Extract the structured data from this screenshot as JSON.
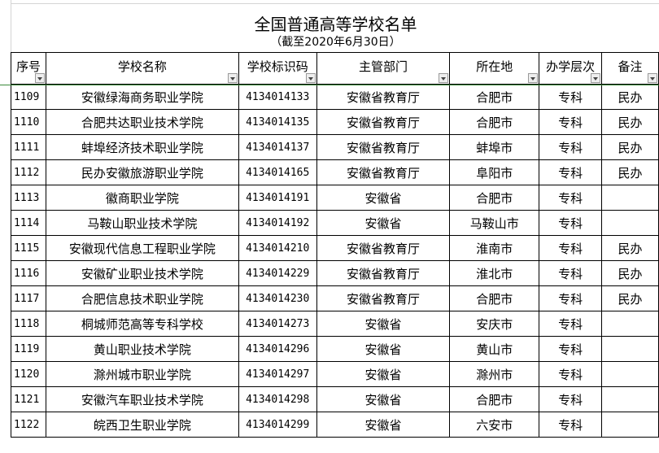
{
  "title": "全国普通高等学校名单",
  "subtitle": "（截至2020年6月30日）",
  "columns": [
    "序号",
    "学校名称",
    "学校标识码",
    "主管部门",
    "所在地",
    "办学层次",
    "备注"
  ],
  "rows": [
    [
      "1109",
      "安徽绿海商务职业学院",
      "4134014133",
      "安徽省教育厅",
      "合肥市",
      "专科",
      "民办"
    ],
    [
      "1110",
      "合肥共达职业技术学院",
      "4134014135",
      "安徽省教育厅",
      "合肥市",
      "专科",
      "民办"
    ],
    [
      "1111",
      "蚌埠经济技术职业学院",
      "4134014137",
      "安徽省教育厅",
      "蚌埠市",
      "专科",
      "民办"
    ],
    [
      "1112",
      "民办安徽旅游职业学院",
      "4134014165",
      "安徽省教育厅",
      "阜阳市",
      "专科",
      "民办"
    ],
    [
      "1113",
      "徽商职业学院",
      "4134014191",
      "安徽省",
      "合肥市",
      "专科",
      ""
    ],
    [
      "1114",
      "马鞍山职业技术学院",
      "4134014192",
      "安徽省",
      "马鞍山市",
      "专科",
      ""
    ],
    [
      "1115",
      "安徽现代信息工程职业学院",
      "4134014210",
      "安徽省教育厅",
      "淮南市",
      "专科",
      "民办"
    ],
    [
      "1116",
      "安徽矿业职业技术学院",
      "4134014229",
      "安徽省教育厅",
      "淮北市",
      "专科",
      "民办"
    ],
    [
      "1117",
      "合肥信息技术职业学院",
      "4134014230",
      "安徽省教育厅",
      "合肥市",
      "专科",
      "民办"
    ],
    [
      "1118",
      "桐城师范高等专科学校",
      "4134014273",
      "安徽省",
      "安庆市",
      "专科",
      ""
    ],
    [
      "1119",
      "黄山职业技术学院",
      "4134014296",
      "安徽省",
      "黄山市",
      "专科",
      ""
    ],
    [
      "1120",
      "滁州城市职业学院",
      "4134014297",
      "安徽省",
      "滁州市",
      "专科",
      ""
    ],
    [
      "1121",
      "安徽汽车职业技术学院",
      "4134014298",
      "安徽省",
      "合肥市",
      "专科",
      ""
    ],
    [
      "1122",
      "皖西卫生职业学院",
      "4134014299",
      "安徽省",
      "六安市",
      "专科",
      ""
    ]
  ]
}
